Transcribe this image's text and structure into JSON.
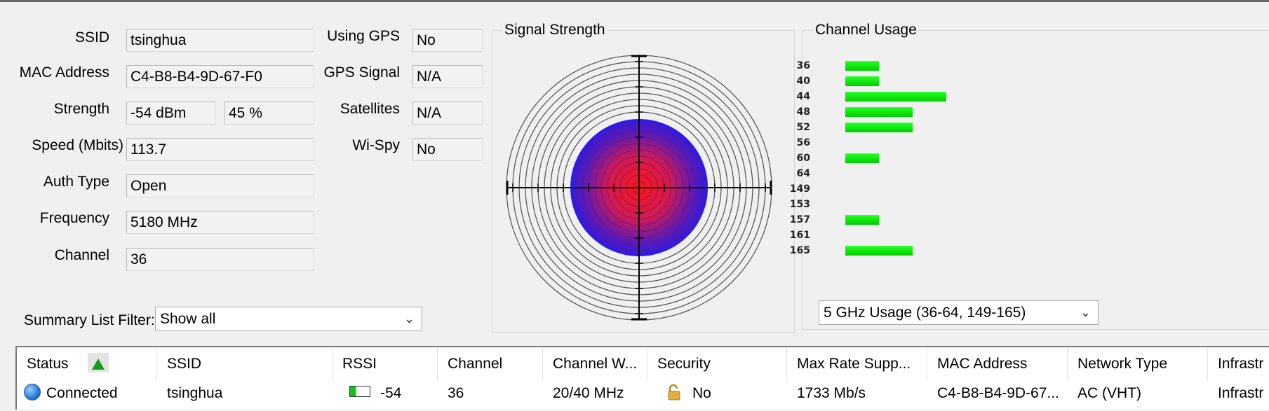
{
  "info": {
    "ssid_label": "SSID",
    "ssid_value": "tsinghua",
    "mac_label": "MAC Address",
    "mac_value": "C4-B8-B4-9D-67-F0",
    "strength_label": "Strength",
    "strength_dbm": "-54 dBm",
    "strength_pct": "45 %",
    "speed_label": "Speed (Mbits)",
    "speed_value": "113.7",
    "auth_label": "Auth Type",
    "auth_value": "Open",
    "freq_label": "Frequency",
    "freq_value": "5180 MHz",
    "channel_label": "Channel",
    "channel_value": "36"
  },
  "gps": {
    "using_label": "Using GPS",
    "using_value": "No",
    "signal_label": "GPS Signal",
    "signal_value": "N/A",
    "sat_label": "Satellites",
    "sat_value": "N/A",
    "wispy_label": "Wi-Spy",
    "wispy_value": "No"
  },
  "signal_panel": {
    "title": "Signal Strength",
    "strength_percent": 45
  },
  "channel_panel": {
    "title": "Channel Usage",
    "rows": [
      {
        "channel": "36",
        "usage": 1
      },
      {
        "channel": "40",
        "usage": 1
      },
      {
        "channel": "44",
        "usage": 3
      },
      {
        "channel": "48",
        "usage": 2
      },
      {
        "channel": "52",
        "usage": 2
      },
      {
        "channel": "56",
        "usage": 0
      },
      {
        "channel": "60",
        "usage": 1
      },
      {
        "channel": "64",
        "usage": 0
      },
      {
        "channel": "149",
        "usage": 0
      },
      {
        "channel": "153",
        "usage": 0
      },
      {
        "channel": "157",
        "usage": 1
      },
      {
        "channel": "161",
        "usage": 0
      },
      {
        "channel": "165",
        "usage": 2
      }
    ],
    "band_selected": "5 GHz Usage (36-64, 149-165)"
  },
  "filter": {
    "label": "Summary List Filter:",
    "selected": "Show all"
  },
  "table": {
    "columns": [
      "Status",
      "SSID",
      "RSSI",
      "Channel",
      "Channel W...",
      "Security",
      "Max Rate Supp...",
      "MAC Address",
      "Network Type",
      "Infrastr"
    ],
    "row": {
      "status": "Connected",
      "ssid": "tsinghua",
      "rssi": "-54",
      "channel": "36",
      "channel_width": "20/40 MHz",
      "security": "No",
      "max_rate": "1733 Mb/s",
      "mac": "C4-B8-B4-9D-67...",
      "network_type": "AC (VHT)",
      "infra": "Infrastr"
    }
  },
  "colors": {
    "bar_green": "#00dd00",
    "sort_arrow": "#1a9a1a",
    "outer_disc": "#2a1aea",
    "center": "#ff1a1a"
  },
  "icons": {
    "sort": "sort-ascending-icon",
    "status": "connected-globe-icon",
    "rssi": "signal-bar-icon",
    "security": "unlocked-padlock-icon",
    "dropdown": "chevron-down-icon"
  }
}
